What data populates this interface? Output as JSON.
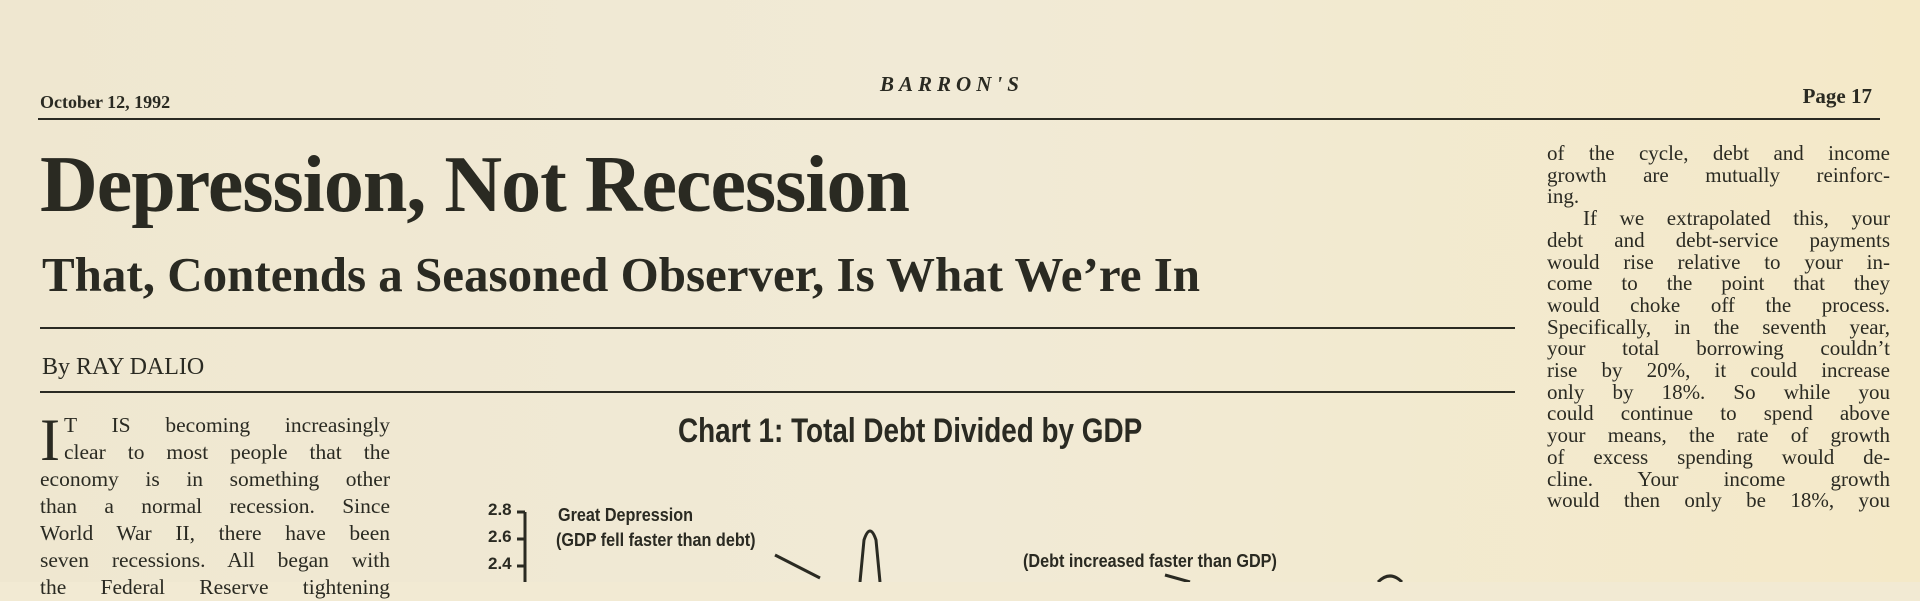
{
  "header": {
    "date": "October 12, 1992",
    "masthead": "BARRON'S",
    "page": "Page 17"
  },
  "article": {
    "headline": "Depression, Not Recession",
    "subheadline": "That, Contends a Seasoned Observer, Is What We’re In",
    "byline": "By RAY DALIO",
    "left_column": {
      "dropcap": "I",
      "lines": [
        "T IS becoming increasingly",
        "clear to most people that the",
        "economy is in something other",
        "than a normal recession. Since",
        "World War II, there have been",
        "seven recessions. All began with",
        "the Federal Reserve tightening"
      ]
    },
    "right_column": {
      "lines": [
        "of the cycle, debt and income",
        "growth are mutually reinforc-",
        "ing.",
        "If we extrapolated this, your",
        "debt and debt-service payments",
        "would rise relative to your in-",
        "come to the point that they",
        "would choke off the process.",
        "Specifically, in the seventh year,",
        "your total borrowing couldn’t",
        "rise by 20%, it could increase",
        "only by 18%. So while you",
        "could continue to spend above",
        "your means, the rate of growth",
        "of excess spending would de-",
        "cline. Your income growth",
        "would then only be 18%, you"
      ]
    }
  },
  "chart": {
    "title": "Chart 1:   Total Debt Divided by GDP",
    "y_ticks": [
      "2.8",
      "2.6",
      "2.4"
    ],
    "annotations": [
      "Great Depression",
      "(GDP fell faster than debt)",
      "(Debt increased faster than GDP)"
    ]
  }
}
